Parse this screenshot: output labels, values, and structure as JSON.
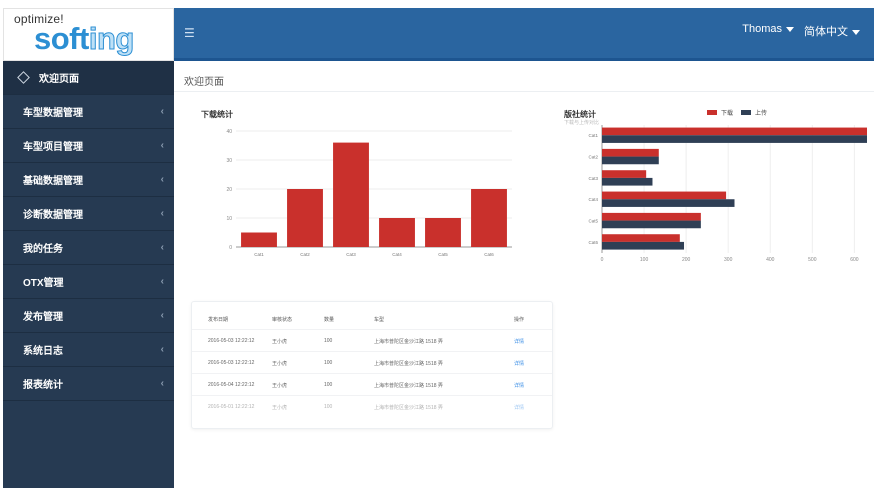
{
  "logo": {
    "small": "optimize!",
    "big_main": "soft",
    "big_tail": "ing"
  },
  "header": {
    "menu_icon": "hamburger-icon",
    "user": "Thomas",
    "language": "简体中文"
  },
  "sidebar": {
    "items": [
      {
        "label": "欢迎页面",
        "icon": "home-icon"
      },
      {
        "label": "车型数据管理"
      },
      {
        "label": "车型项目管理"
      },
      {
        "label": "基础数据管理"
      },
      {
        "label": "诊断数据管理"
      },
      {
        "label": "我的任务"
      },
      {
        "label": "OTX管理"
      },
      {
        "label": "发布管理"
      },
      {
        "label": "系统日志"
      },
      {
        "label": "报表统计"
      }
    ]
  },
  "breadcrumb": "欢迎页面",
  "colors": {
    "red": "#c9302c",
    "navy": "#2f3f55",
    "topbar": "#2a65a0",
    "sidebar": "#263a52"
  },
  "chart_data": [
    {
      "type": "bar",
      "title": "下载统计",
      "categories": [
        "Cat1",
        "Cat2",
        "Cat3",
        "Cat4",
        "Cat5",
        "Cat6"
      ],
      "values": [
        5,
        20,
        36,
        10,
        10,
        20
      ],
      "ylim": [
        0,
        40
      ],
      "yticks": [
        "0",
        "10",
        "20",
        "30",
        "40"
      ],
      "grid": true
    },
    {
      "type": "bar",
      "orientation": "horizontal",
      "title": "版社统计",
      "subtitle": "下载与上传对比",
      "categories": [
        "Cat1",
        "Cat2",
        "Cat3",
        "Cat4",
        "Cat5",
        "Cat6"
      ],
      "series": [
        {
          "name": "下载",
          "color": "#c9302c",
          "values": [
            630,
            135,
            105,
            295,
            235,
            185
          ]
        },
        {
          "name": "上传",
          "color": "#2f3f55",
          "values": [
            630,
            135,
            120,
            315,
            235,
            195
          ]
        }
      ],
      "xlim": [
        0,
        630
      ],
      "xticks": [
        "0",
        "100",
        "200",
        "300",
        "400",
        "500",
        "600"
      ],
      "legend_position": "top-right",
      "grid": true
    }
  ],
  "table": {
    "headers": [
      "发布日期",
      "审核状态",
      "数量",
      "车型",
      "操作"
    ],
    "rows": [
      [
        "2016-05-03 12:22:12",
        "王小虎",
        "100",
        "上海市普陀区金沙江路 1518 弄",
        "详情"
      ],
      [
        "2016-05-03 12:22:12",
        "王小虎",
        "100",
        "上海市普陀区金沙江路 1518 弄",
        "详情"
      ],
      [
        "2016-05-04 12:22:12",
        "王小虎",
        "100",
        "上海市普陀区金沙江路 1518 弄",
        "详情"
      ],
      [
        "2016-05-01 12:22:12",
        "王小虎",
        "100",
        "上海市普陀区金沙江路 1518 弄",
        "详情"
      ]
    ]
  }
}
